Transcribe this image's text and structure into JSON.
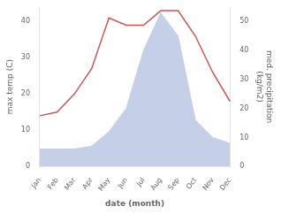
{
  "chart_data": {
    "type": "line",
    "categories": [
      "Jan",
      "Feb",
      "Mar",
      "Apr",
      "May",
      "Jun",
      "Jul",
      "Aug",
      "Sep",
      "Oct",
      "Nov",
      "Dec"
    ],
    "xlabel": "date (month)",
    "ylabel": "max temp (C)",
    "y2label": "med. precipitation\n(kg/m2)",
    "series": [
      {
        "type": "line",
        "color": "#cc5555",
        "values": [
          14,
          15,
          20,
          27,
          41,
          39,
          39,
          43,
          43,
          36,
          26,
          18
        ]
      },
      {
        "type": "area",
        "color": "#c5cfe8",
        "axis": "y2",
        "values": [
          6,
          6,
          6,
          7,
          12,
          20,
          40,
          53,
          45,
          16,
          10,
          8
        ]
      }
    ],
    "ylim": [
      0,
      44
    ],
    "yticks": [
      0,
      10,
      20,
      30,
      40
    ],
    "y2lim": [
      0,
      55
    ],
    "y2ticks": [
      0,
      10,
      20,
      30,
      40,
      50
    ],
    "grid": false
  }
}
